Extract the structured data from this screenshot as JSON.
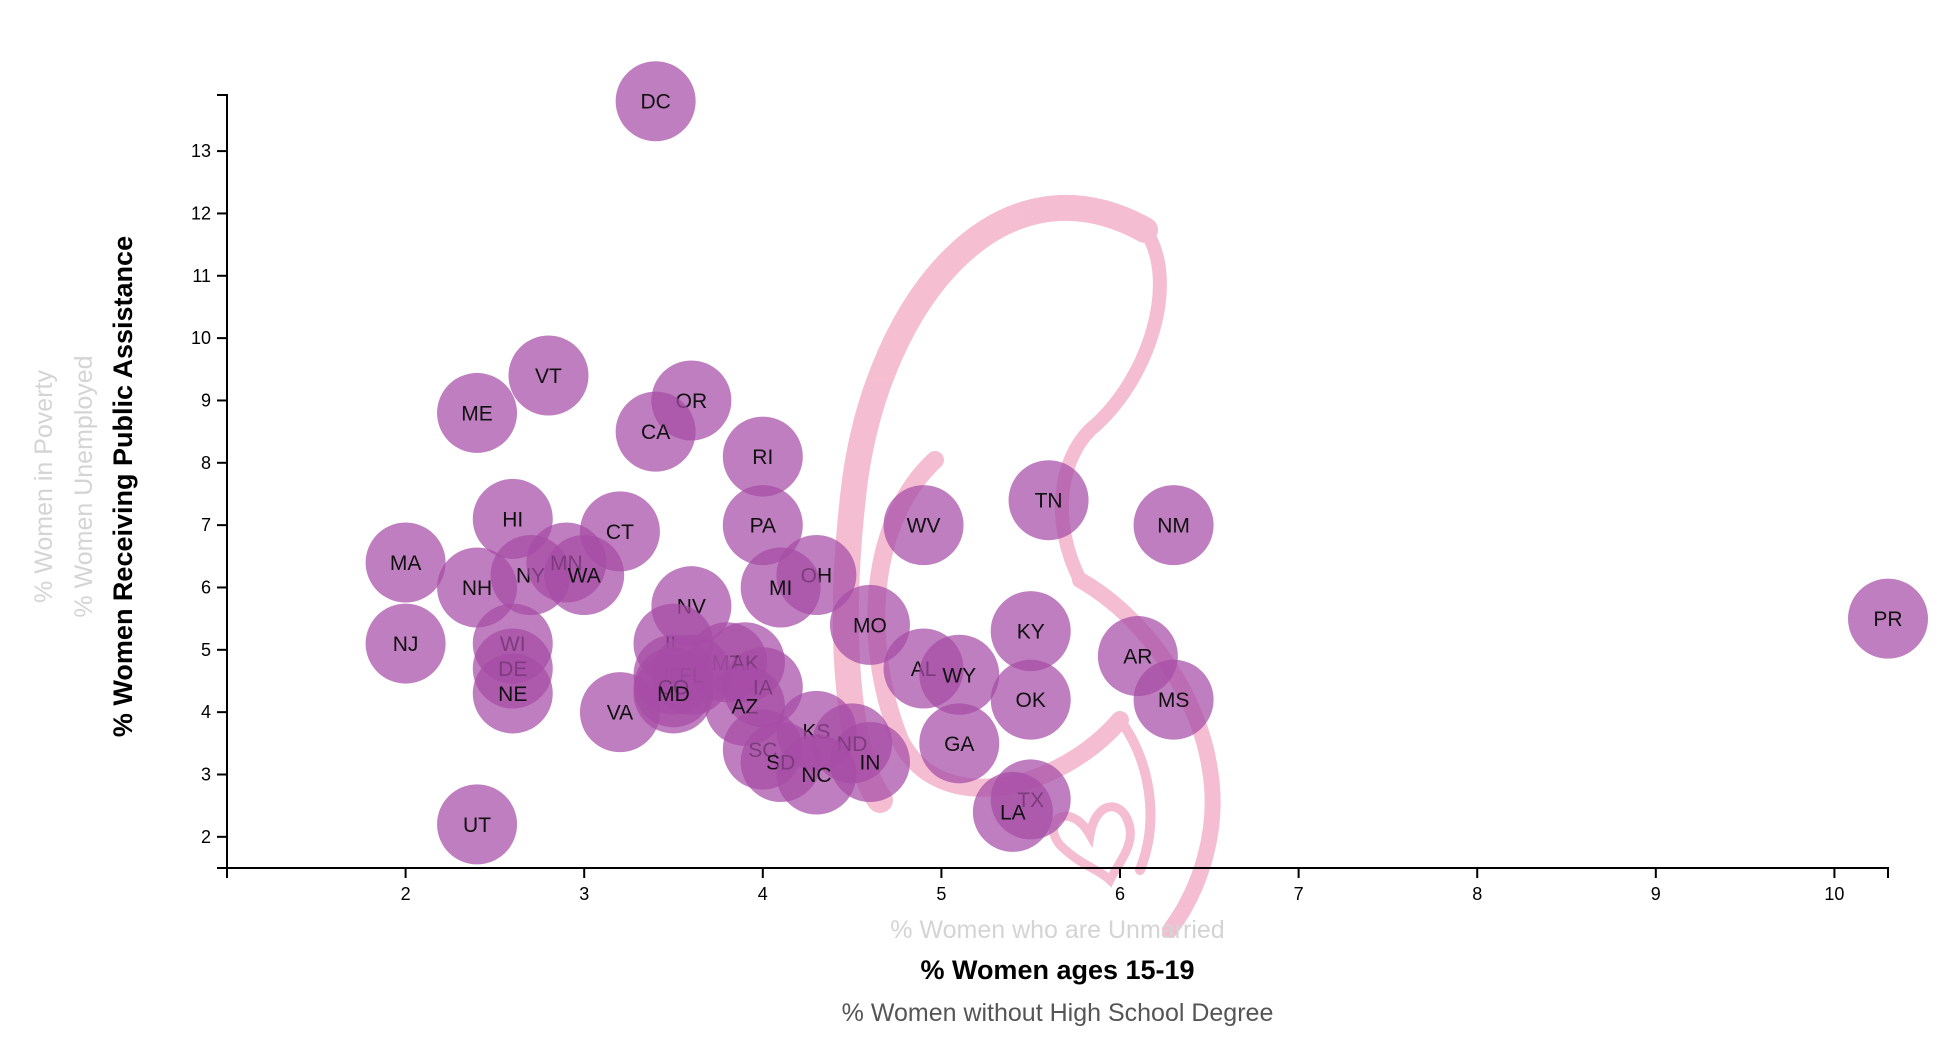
{
  "chart_data": {
    "type": "scatter",
    "x_axis": {
      "active_label": "% Women ages 15-19",
      "options": [
        "% Women who are Unmarried",
        "% Women ages 15-19",
        "% Women without High School Degree"
      ],
      "range": [
        1.0,
        10.3
      ],
      "ticks": [
        2,
        3,
        4,
        5,
        6,
        7,
        8,
        9,
        10
      ]
    },
    "y_axis": {
      "active_label": "% Women Receiving Public Assistance",
      "options": [
        "% Women in Poverty",
        "% Women Unemployed",
        "% Women Receiving Public Assistance"
      ],
      "range": [
        1.5,
        13.9
      ],
      "ticks": [
        2,
        3,
        4,
        5,
        6,
        7,
        8,
        9,
        10,
        11,
        12,
        13
      ]
    },
    "marker_color": "#a64ca6",
    "points": [
      {
        "label": "DC",
        "x": 3.4,
        "y": 13.8
      },
      {
        "label": "VT",
        "x": 2.8,
        "y": 9.4
      },
      {
        "label": "ME",
        "x": 2.4,
        "y": 8.8
      },
      {
        "label": "OR",
        "x": 3.6,
        "y": 9.0
      },
      {
        "label": "CA",
        "x": 3.4,
        "y": 8.5
      },
      {
        "label": "RI",
        "x": 4.0,
        "y": 8.1
      },
      {
        "label": "HI",
        "x": 2.6,
        "y": 7.1
      },
      {
        "label": "CT",
        "x": 3.2,
        "y": 6.9
      },
      {
        "label": "PA",
        "x": 4.0,
        "y": 7.0
      },
      {
        "label": "WV",
        "x": 4.9,
        "y": 7.0
      },
      {
        "label": "TN",
        "x": 5.6,
        "y": 7.4
      },
      {
        "label": "NM",
        "x": 6.3,
        "y": 7.0
      },
      {
        "label": "MA",
        "x": 2.0,
        "y": 6.4
      },
      {
        "label": "NH",
        "x": 2.4,
        "y": 6.0
      },
      {
        "label": "NY",
        "x": 2.7,
        "y": 6.2
      },
      {
        "label": "MN",
        "x": 2.9,
        "y": 6.4
      },
      {
        "label": "WA",
        "x": 3.0,
        "y": 6.2
      },
      {
        "label": "OH",
        "x": 4.3,
        "y": 6.2
      },
      {
        "label": "MI",
        "x": 4.1,
        "y": 6.0
      },
      {
        "label": "NV",
        "x": 3.6,
        "y": 5.7
      },
      {
        "label": "MO",
        "x": 4.6,
        "y": 5.4
      },
      {
        "label": "KY",
        "x": 5.5,
        "y": 5.3
      },
      {
        "label": "PR",
        "x": 10.3,
        "y": 5.5
      },
      {
        "label": "NJ",
        "x": 2.0,
        "y": 5.1
      },
      {
        "label": "WI",
        "x": 2.6,
        "y": 5.1
      },
      {
        "label": "IL",
        "x": 3.5,
        "y": 5.1
      },
      {
        "label": "MT",
        "x": 3.8,
        "y": 4.8
      },
      {
        "label": "AK",
        "x": 3.9,
        "y": 4.8
      },
      {
        "label": "AR",
        "x": 6.1,
        "y": 4.9
      },
      {
        "label": "DE",
        "x": 2.6,
        "y": 4.7
      },
      {
        "label": "ID",
        "x": 3.5,
        "y": 4.6
      },
      {
        "label": "FL",
        "x": 3.6,
        "y": 4.6
      },
      {
        "label": "AL",
        "x": 4.9,
        "y": 4.7
      },
      {
        "label": "WY",
        "x": 5.1,
        "y": 4.6
      },
      {
        "label": "CO",
        "x": 3.5,
        "y": 4.4
      },
      {
        "label": "MD",
        "x": 3.5,
        "y": 4.3
      },
      {
        "label": "IA",
        "x": 4.0,
        "y": 4.4
      },
      {
        "label": "NE",
        "x": 2.6,
        "y": 4.3
      },
      {
        "label": "OK",
        "x": 5.5,
        "y": 4.2
      },
      {
        "label": "MS",
        "x": 6.3,
        "y": 4.2
      },
      {
        "label": "AZ",
        "x": 3.9,
        "y": 4.1
      },
      {
        "label": "VA",
        "x": 3.2,
        "y": 4.0
      },
      {
        "label": "KS",
        "x": 4.3,
        "y": 3.7
      },
      {
        "label": "ND",
        "x": 4.5,
        "y": 3.5
      },
      {
        "label": "GA",
        "x": 5.1,
        "y": 3.5
      },
      {
        "label": "SC",
        "x": 4.0,
        "y": 3.4
      },
      {
        "label": "SD",
        "x": 4.1,
        "y": 3.2
      },
      {
        "label": "IN",
        "x": 4.6,
        "y": 3.2
      },
      {
        "label": "NC",
        "x": 4.3,
        "y": 3.0
      },
      {
        "label": "TX",
        "x": 5.5,
        "y": 2.6
      },
      {
        "label": "LA",
        "x": 5.4,
        "y": 2.4
      },
      {
        "label": "UT",
        "x": 2.4,
        "y": 2.2
      }
    ]
  }
}
